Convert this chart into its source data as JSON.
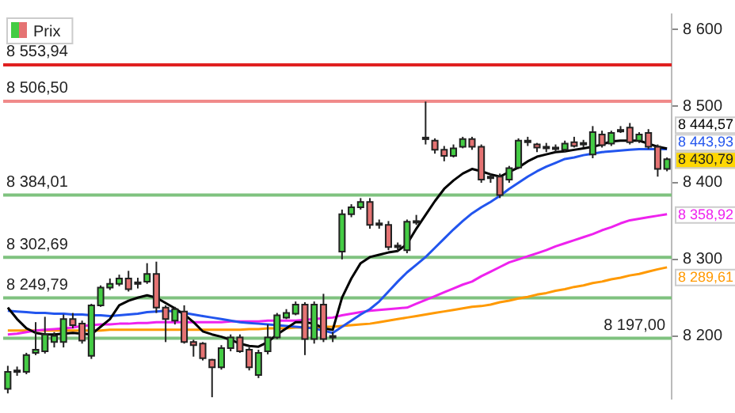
{
  "chart_data": {
    "type": "candlestick",
    "legend": "top left",
    "grid": false,
    "tick_labels": "y",
    "categories": [
      null,
      null,
      null,
      null,
      null,
      null,
      null,
      null,
      null,
      null,
      null,
      null,
      null,
      null,
      null,
      null,
      null,
      null,
      null,
      null,
      null,
      null,
      null,
      null,
      null,
      null,
      null,
      null,
      null,
      null,
      null,
      null,
      null,
      null,
      null,
      null,
      null,
      null,
      null,
      null,
      null,
      null,
      null,
      null,
      null,
      null,
      null,
      null,
      null,
      null,
      null,
      null,
      null,
      null,
      null,
      null,
      null,
      null,
      null,
      null,
      null,
      null,
      null,
      null,
      null,
      null,
      null,
      null,
      null,
      null,
      null,
      null
    ],
    "ylim": [
      8118,
      8620
    ],
    "yticks": [
      {
        "value": 8200,
        "label": "8 200"
      },
      {
        "value": 8300,
        "label": "8 300"
      },
      {
        "value": 8400,
        "label": "8 400"
      },
      {
        "value": 8500,
        "label": "8 500"
      },
      {
        "value": 8600,
        "label": "8 600"
      }
    ],
    "series": [
      {
        "name": "Prix",
        "type": "candlestick",
        "ohlc": [
          [
            8131,
            8161,
            8125,
            8153
          ],
          [
            8153,
            8160,
            8148,
            8155
          ],
          [
            8153,
            8178,
            8150,
            8175
          ],
          [
            8178,
            8218,
            8175,
            8182
          ],
          [
            8180,
            8225,
            8177,
            8202
          ],
          [
            8192,
            8205,
            8185,
            8200
          ],
          [
            8192,
            8228,
            8185,
            8222
          ],
          [
            8222,
            8230,
            8210,
            8214
          ],
          [
            8216,
            8220,
            8190,
            8194
          ],
          [
            8174,
            8242,
            8170,
            8240
          ],
          [
            8240,
            8266,
            8238,
            8263
          ],
          [
            8263,
            8275,
            8260,
            8268
          ],
          [
            8268,
            8280,
            8265,
            8275
          ],
          [
            8275,
            8285,
            8258,
            8261
          ],
          [
            8268,
            8276,
            8262,
            8270
          ],
          [
            8271,
            8295,
            8268,
            8281
          ],
          [
            8281,
            8297,
            8230,
            8237
          ],
          [
            8237,
            8240,
            8192,
            8222
          ],
          [
            8220,
            8238,
            8215,
            8235
          ],
          [
            8232,
            8240,
            8190,
            8192
          ],
          [
            8192,
            8195,
            8173,
            8188
          ],
          [
            8190,
            8192,
            8168,
            8171
          ],
          [
            8169,
            8170,
            8120,
            8159
          ],
          [
            8159,
            8188,
            8156,
            8184
          ],
          [
            8184,
            8202,
            8180,
            8198
          ],
          [
            8198,
            8202,
            8178,
            8180
          ],
          [
            8182,
            8185,
            8155,
            8159
          ],
          [
            8149,
            8182,
            8145,
            8178
          ],
          [
            8180,
            8215,
            8176,
            8198
          ],
          [
            8198,
            8230,
            8196,
            8227
          ],
          [
            8224,
            8235,
            8222,
            8230
          ],
          [
            8229,
            8245,
            8227,
            8241
          ],
          [
            8241,
            8244,
            8175,
            8196
          ],
          [
            8196,
            8245,
            8190,
            8241
          ],
          [
            8241,
            8255,
            8192,
            8196
          ],
          [
            8198,
            8205,
            8192,
            8200
          ],
          [
            8310,
            8365,
            8300,
            8359
          ],
          [
            8359,
            8372,
            8355,
            8368
          ],
          [
            8368,
            8380,
            8365,
            8375
          ],
          [
            8375,
            8380,
            8340,
            8345
          ],
          [
            8345,
            8352,
            8340,
            8347
          ],
          [
            8345,
            8350,
            8312,
            8316
          ],
          [
            8318,
            8322,
            8310,
            8316
          ],
          [
            8312,
            8352,
            8308,
            8349
          ],
          [
            8349,
            8358,
            8345,
            8350
          ],
          [
            8459,
            8506,
            8450,
            8457
          ],
          [
            8455,
            8458,
            8438,
            8443
          ],
          [
            8443,
            8448,
            8428,
            8435
          ],
          [
            8435,
            8450,
            8433,
            8445
          ],
          [
            8447,
            8460,
            8445,
            8457
          ],
          [
            8457,
            8460,
            8443,
            8447
          ],
          [
            8447,
            8450,
            8400,
            8404
          ],
          [
            8406,
            8412,
            8400,
            8408
          ],
          [
            8408,
            8412,
            8380,
            8384
          ],
          [
            8404,
            8422,
            8400,
            8419
          ],
          [
            8420,
            8458,
            8418,
            8455
          ],
          [
            8453,
            8460,
            8448,
            8455
          ],
          [
            8450,
            8452,
            8440,
            8446
          ],
          [
            8446,
            8452,
            8440,
            8447
          ],
          [
            8445,
            8450,
            8440,
            8446
          ],
          [
            8443,
            8455,
            8440,
            8451
          ],
          [
            8453,
            8460,
            8446,
            8448
          ],
          [
            8450,
            8456,
            8446,
            8452
          ],
          [
            8437,
            8474,
            8432,
            8466
          ],
          [
            8463,
            8468,
            8446,
            8449
          ],
          [
            8451,
            8468,
            8448,
            8465
          ],
          [
            8468,
            8474,
            8465,
            8469
          ],
          [
            8472,
            8478,
            8450,
            8453
          ],
          [
            8455,
            8466,
            8452,
            8463
          ],
          [
            8465,
            8470,
            8444,
            8447
          ],
          [
            8447,
            8450,
            8408,
            8418
          ],
          [
            8418,
            8433,
            8415,
            8430.79
          ]
        ],
        "colors": [
          "#44cc44",
          "#44cc44",
          "#44cc44",
          "#44cc44",
          "#44cc44",
          "#44cc44",
          "#44cc44",
          "#e57373",
          "#e57373",
          "#44cc44",
          "#44cc44",
          "#44cc44",
          "#44cc44",
          "#e57373",
          "#44cc44",
          "#44cc44",
          "#e57373",
          "#e57373",
          "#44cc44",
          "#e57373",
          "#e57373",
          "#e57373",
          "#e57373",
          "#44cc44",
          "#44cc44",
          "#e57373",
          "#e57373",
          "#44cc44",
          "#44cc44",
          "#44cc44",
          "#44cc44",
          "#44cc44",
          "#e57373",
          "#44cc44",
          "#e57373",
          "#44cc44",
          "#44cc44",
          "#44cc44",
          "#44cc44",
          "#e57373",
          "#44cc44",
          "#e57373",
          "#e57373",
          "#44cc44",
          "#44cc44",
          "#e57373",
          "#e57373",
          "#e57373",
          "#44cc44",
          "#44cc44",
          "#e57373",
          "#e57373",
          "#44cc44",
          "#e57373",
          "#44cc44",
          "#44cc44",
          "#44cc44",
          "#e57373",
          "#44cc44",
          "#44cc44",
          "#44cc44",
          "#e57373",
          "#44cc44",
          "#44cc44",
          "#e57373",
          "#44cc44",
          "#44cc44",
          "#e57373",
          "#44cc44",
          "#e57373",
          "#e57373",
          "#44cc44"
        ]
      },
      {
        "type": "line",
        "color": "#000000",
        "values": [
          8237,
          8222,
          8210,
          8204,
          8202,
          8202,
          8203,
          8204,
          8203,
          8202,
          8212,
          8222,
          8240,
          8246,
          8250,
          8253,
          8250,
          8243,
          8236,
          8228,
          8218,
          8206,
          8202,
          8199,
          8195,
          8190,
          8187,
          8186,
          8192,
          8202,
          8210,
          8218,
          8218,
          8216,
          8210,
          8208,
          8250,
          8275,
          8295,
          8303,
          8306,
          8309,
          8311,
          8320,
          8340,
          8358,
          8376,
          8392,
          8403,
          8412,
          8418,
          8415,
          8411,
          8408,
          8414,
          8420,
          8428,
          8434,
          8437,
          8440,
          8441,
          8443,
          8445,
          8447,
          8450,
          8454,
          8455,
          8455,
          8455,
          8451,
          8447,
          8444.57
        ]
      },
      {
        "type": "line",
        "color": "#2255ee",
        "values": [
          8233,
          8232,
          8231,
          8230,
          8230,
          8229,
          8229,
          8228,
          8228,
          8227,
          8227,
          8226,
          8227,
          8228,
          8229,
          8231,
          8232,
          8233,
          8232,
          8230,
          8228,
          8226,
          8224,
          8222,
          8220,
          8218,
          8217,
          8216,
          8215,
          8214,
          8213,
          8212,
          8211,
          8210,
          8207,
          8204,
          8212,
          8220,
          8228,
          8235,
          8245,
          8258,
          8271,
          8283,
          8293,
          8303,
          8315,
          8327,
          8339,
          8350,
          8360,
          8368,
          8375,
          8383,
          8392,
          8400,
          8408,
          8415,
          8421,
          8426,
          8431,
          8433,
          8436,
          8438,
          8440,
          8441,
          8442,
          8443,
          8444,
          8444,
          8444,
          8443.93
        ]
      },
      {
        "type": "line",
        "color": "#ee22ee",
        "values": [
          8202,
          8203,
          8205,
          8207,
          8208,
          8209,
          8210,
          8211,
          8213,
          8214,
          8215,
          8215,
          8216,
          8216,
          8217,
          8217,
          8218,
          8218,
          8218,
          8218,
          8218,
          8218,
          8218,
          8218,
          8219,
          8219,
          8219,
          8219,
          8220,
          8220,
          8220,
          8220,
          8221,
          8222,
          8223,
          8224,
          8227,
          8229,
          8231,
          8233,
          8234,
          8235,
          8236,
          8237,
          8242,
          8247,
          8252,
          8257,
          8262,
          8267,
          8271,
          8278,
          8284,
          8290,
          8296,
          8300,
          8304,
          8308,
          8312,
          8317,
          8321,
          8325,
          8329,
          8333,
          8338,
          8342,
          8347,
          8351,
          8353,
          8355,
          8357,
          8358.92
        ]
      },
      {
        "type": "line",
        "color": "#ff9900",
        "values": [
          8207,
          8207,
          8207,
          8207,
          8207,
          8207,
          8207,
          8207,
          8207,
          8207,
          8207,
          8208,
          8208,
          8208,
          8208,
          8208,
          8208,
          8208,
          8208,
          8208,
          8208,
          8208,
          8208,
          8208,
          8208,
          8208,
          8209,
          8209,
          8210,
          8210,
          8210,
          8211,
          8211,
          8211,
          8212,
          8212,
          8213,
          8214,
          8215,
          8216,
          8218,
          8220,
          8222,
          8224,
          8226,
          8228,
          8230,
          8232,
          8234,
          8236,
          8238,
          8239,
          8241,
          8244,
          8246,
          8249,
          8251,
          8254,
          8256,
          8259,
          8261,
          8264,
          8266,
          8269,
          8271,
          8274,
          8276,
          8279,
          8281,
          8284,
          8287,
          8289.61
        ]
      }
    ],
    "ref_lines": [
      {
        "axis": "y",
        "value": 8553.94,
        "label": "8 553,94",
        "color": "#e02020"
      },
      {
        "axis": "y",
        "value": 8506.5,
        "label": "8 506,50",
        "color": "#f08a8a"
      },
      {
        "axis": "y",
        "value": 8384.01,
        "label": "8 384,01",
        "color": "#7fc27f"
      },
      {
        "axis": "y",
        "value": 8302.69,
        "label": "8 302,69",
        "color": "#7fc27f"
      },
      {
        "axis": "y",
        "value": 8249.79,
        "label": "8 249,79",
        "color": "#7fc27f"
      },
      {
        "axis": "y",
        "value": 8197,
        "label": "8 197,00",
        "color": "#7fc27f"
      }
    ],
    "annotations": [
      "8 444,57",
      "8 443,93",
      "8 430,79",
      "8 358,92",
      "8 289,61"
    ]
  }
}
